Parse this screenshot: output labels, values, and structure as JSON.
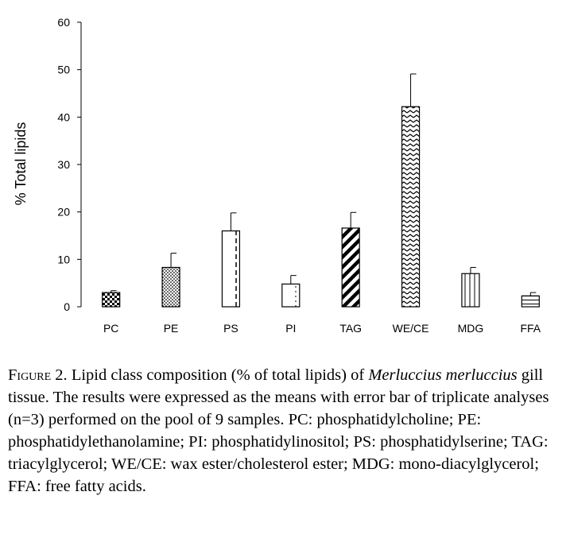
{
  "chart_data": {
    "type": "bar",
    "categories": [
      "PC",
      "PE",
      "PS",
      "PI",
      "TAG",
      "WE/CE",
      "MDG",
      "FFA"
    ],
    "values": [
      3.0,
      8.3,
      16.0,
      4.8,
      16.6,
      42.2,
      7.0,
      2.3
    ],
    "errors": [
      0.4,
      3.0,
      3.8,
      1.8,
      3.3,
      6.9,
      1.3,
      0.7
    ],
    "patterns": [
      "checker",
      "dots",
      "dashed-vertical",
      "dotted-cross",
      "diagonal",
      "zigzag",
      "vertical",
      "horizontal"
    ],
    "title": "",
    "xlabel": "",
    "ylabel": "% Total lipids",
    "ylim": [
      0,
      60
    ],
    "yticks": [
      0,
      10,
      20,
      30,
      40,
      50,
      60
    ],
    "grid": false,
    "bar_color": "#000000"
  },
  "caption": {
    "label": "Figure 2.",
    "text_before_italic": " Lipid class composition (% of total lipids) of ",
    "species": "Merluccius merluccius",
    "text_after_italic": " gill tissue. The results were expressed as the means with error bar of triplicate analyses (n=3) performed on the pool of 9 samples. PC: phosphatidylcholine; PE: phosphatidylethanolamine; PI: phosphatidylinositol; PS: phosphatidylserine; TAG: triacylglycerol; WE/CE: wax ester/cholesterol ester; MDG: mono-diacylglycerol; FFA: free fatty acids."
  }
}
